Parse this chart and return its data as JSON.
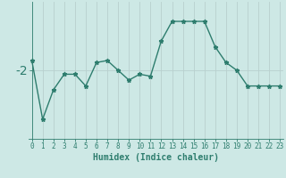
{
  "x": [
    0,
    1,
    2,
    3,
    4,
    5,
    6,
    7,
    8,
    9,
    10,
    11,
    12,
    13,
    14,
    15,
    16,
    17,
    18,
    19,
    20,
    21,
    22,
    23
  ],
  "y": [
    -1.5,
    -4.5,
    -3.0,
    -2.2,
    -2.2,
    -2.8,
    -1.6,
    -1.5,
    -2.0,
    -2.5,
    -2.2,
    -2.3,
    -0.5,
    0.5,
    0.5,
    0.5,
    0.5,
    -0.8,
    -1.6,
    -2.0,
    -2.8,
    -2.8,
    -2.8,
    -2.8
  ],
  "line_color": "#2e7d6e",
  "marker": "*",
  "marker_color": "#2e7d6e",
  "background_color": "#cde8e5",
  "grid_color": "#b8d0ce",
  "ytick_label": "-2",
  "ytick_value": -2,
  "xlabel": "Humidex (Indice chaleur)",
  "xlabel_fontsize": 7,
  "ylim": [
    -5.5,
    1.5
  ],
  "xlim": [
    -0.3,
    23.3
  ],
  "tick_label_color": "#2e7d6e",
  "axis_color": "#2e7d6e",
  "tick_fontsize": 5.5,
  "ylabel_fontsize": 8
}
